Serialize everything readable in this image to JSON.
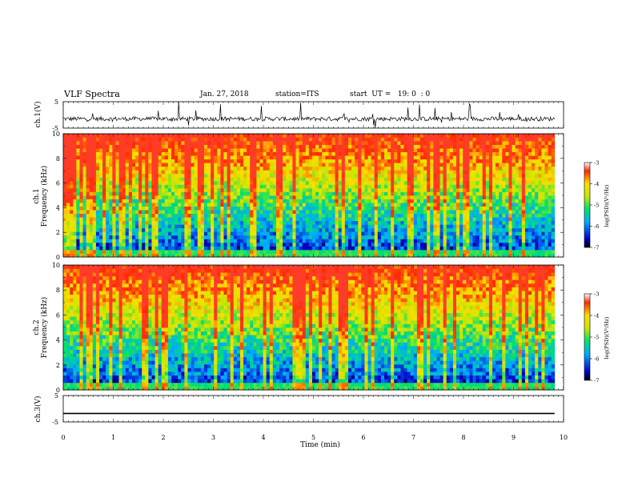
{
  "header": {
    "title": "VLF Spectra",
    "date": "Jan. 27, 2018",
    "station": "station=ITS",
    "start_ut": "start  UT =   19: 0  : 0"
  },
  "chart_data": [
    {
      "type": "line",
      "panel": "ch1-waveform",
      "ylabel": "ch.1(V)",
      "yticks": [
        "5",
        "-5"
      ],
      "ylim": [
        -5,
        5
      ],
      "xlim": [
        0,
        10
      ],
      "description_values": {
        "baseline": -1.5,
        "noise_range": [
          -3,
          0
        ],
        "spike_range": [
          -5,
          5
        ]
      }
    },
    {
      "type": "heatmap",
      "panel": "ch1-spectrogram",
      "ylabel_line1": "ch.1",
      "ylabel_line2": "Frequency (kHz)",
      "ylim": [
        0,
        10
      ],
      "yticks": [
        "0",
        "2",
        "4",
        "6",
        "8",
        "10"
      ],
      "xlim": [
        0,
        10
      ],
      "colorbar": {
        "label": "log(PSD)(V²/Hz)",
        "ticks": [
          "-3",
          "-4",
          "-5",
          "-6",
          "-7"
        ],
        "range": [
          -7,
          -3
        ]
      }
    },
    {
      "type": "heatmap",
      "panel": "ch2-spectrogram",
      "ylabel_line1": "ch.2",
      "ylabel_line2": "Frequency (kHz)",
      "ylim": [
        0,
        10
      ],
      "yticks": [
        "0",
        "2",
        "4",
        "6",
        "8",
        "10"
      ],
      "xlim": [
        0,
        10
      ],
      "colorbar": {
        "label": "log(PSD)(V²/Hz)",
        "ticks": [
          "-3",
          "-4",
          "-5",
          "-6",
          "-7"
        ],
        "range": [
          -7,
          -3
        ]
      }
    },
    {
      "type": "line",
      "panel": "ch3-waveform",
      "ylabel": "ch.3(V)",
      "yticks": [
        "5",
        "-5"
      ],
      "ylim": [
        -5,
        5
      ],
      "xlim": [
        0,
        10
      ],
      "xlabel": "Time (min)",
      "xticks": [
        "0",
        "1",
        "2",
        "3",
        "4",
        "5",
        "6",
        "7",
        "8",
        "9",
        "10"
      ],
      "description_values": {
        "constant_level": -1.8
      }
    }
  ]
}
